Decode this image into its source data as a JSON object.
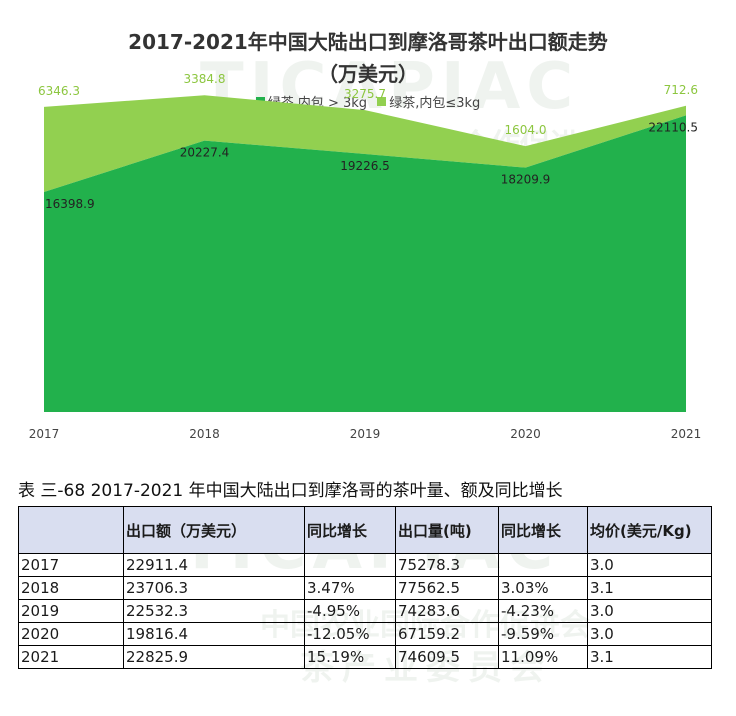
{
  "chart_data": {
    "type": "area",
    "stacked": true,
    "title": "2017-2021年中国大陆出口到摩洛哥茶叶出口额走势",
    "subtitle": "（万美元）",
    "x": [
      "2017",
      "2018",
      "2019",
      "2020",
      "2021"
    ],
    "series": [
      {
        "name": "绿茶,内包 > 3kg",
        "values": [
          16398.9,
          20227.4,
          19226.5,
          18209.9,
          22110.5
        ],
        "color": "#22b14c"
      },
      {
        "name": "绿茶,内包≤3kg",
        "values": [
          6346.3,
          3384.8,
          3275.7,
          1604.0,
          712.6
        ],
        "color": "#92d050"
      }
    ],
    "data_labels": {
      "s0": [
        "16398.9",
        "20227.4",
        "19226.5",
        "18209.9",
        "22110.5"
      ],
      "s1": [
        "6346.3",
        "3384.8",
        "3275.7",
        "1604.0",
        "712.6"
      ]
    },
    "legend_position": "top",
    "grid": false,
    "ylim": [
      0,
      24000
    ]
  },
  "watermark": {
    "line1": "TICAPIAC",
    "line2": "中国农业国际合作促进会",
    "line3": "茶产业委员会"
  },
  "table": {
    "caption": "表 三-68 2017-2021 年中国大陆出口到摩洛哥的茶叶量、额及同比增长",
    "headers": [
      "",
      "出口额（万美元）",
      "同比增长",
      "出口量(吨)",
      "同比增长",
      "均价(美元/Kg)"
    ],
    "rows": [
      [
        "2017",
        "22911.4",
        "",
        "75278.3",
        "",
        "3.0"
      ],
      [
        "2018",
        "23706.3",
        "3.47%",
        "77562.5",
        "3.03%",
        "3.1"
      ],
      [
        "2019",
        "22532.3",
        "-4.95%",
        "74283.6",
        "-4.23%",
        "3.0"
      ],
      [
        "2020",
        "19816.4",
        "-12.05%",
        "67159.2",
        "-9.59%",
        "3.0"
      ],
      [
        "2021",
        "22825.9",
        "15.19%",
        "74609.5",
        "11.09%",
        "3.1"
      ]
    ]
  }
}
